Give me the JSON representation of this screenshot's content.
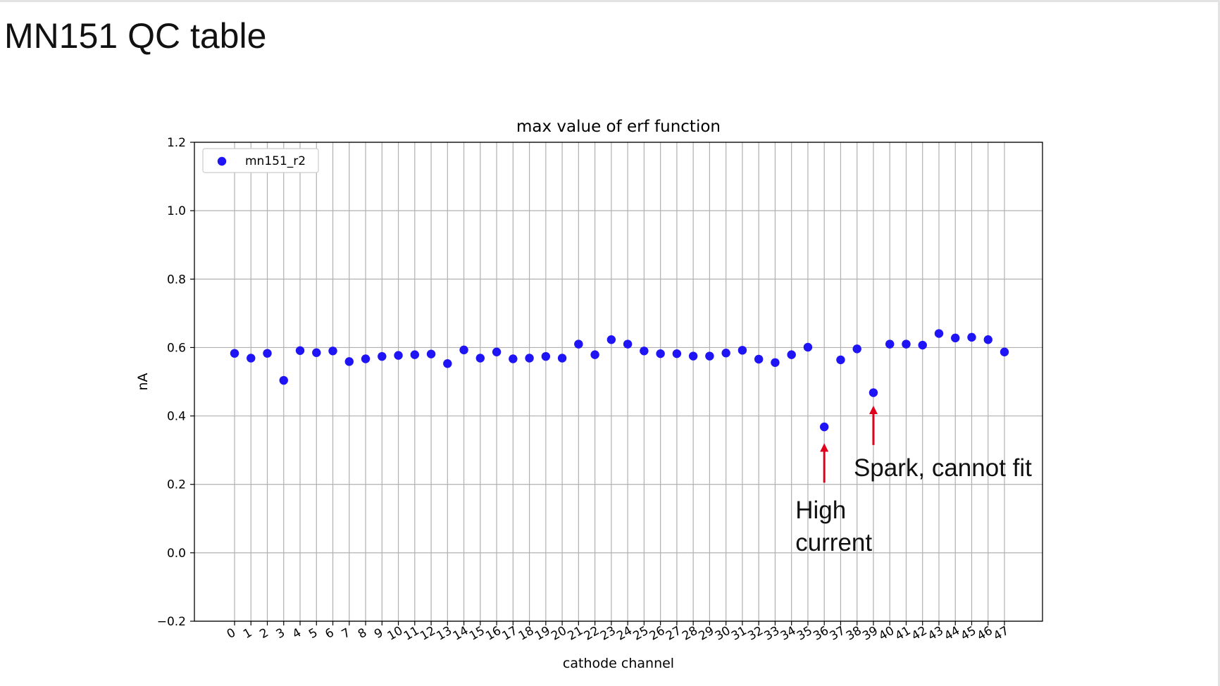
{
  "slide": {
    "title": "MN151 QC table"
  },
  "chart_data": {
    "type": "scatter",
    "title": "max value of erf function",
    "xlabel": "cathode channel",
    "ylabel": "nA",
    "ylim": [
      -0.2,
      1.2
    ],
    "yticks": [
      -0.2,
      0.0,
      0.2,
      0.4,
      0.6,
      0.8,
      1.0,
      1.2
    ],
    "ytick_labels": [
      "−0.2",
      "0.0",
      "0.2",
      "0.4",
      "0.6",
      "0.8",
      "1.0",
      "1.2"
    ],
    "grid": true,
    "legend_placement": "top-left",
    "xtick_rotation": "angled",
    "series": [
      {
        "name": "mn151_r2",
        "color": "#1f14f5",
        "x": [
          0,
          1,
          2,
          3,
          4,
          5,
          6,
          7,
          8,
          9,
          10,
          11,
          12,
          13,
          14,
          15,
          16,
          17,
          18,
          19,
          20,
          21,
          22,
          23,
          24,
          25,
          26,
          27,
          28,
          29,
          30,
          31,
          32,
          33,
          34,
          35,
          36,
          37,
          38,
          39,
          40,
          41,
          42,
          43,
          44,
          45,
          46,
          47
        ],
        "values": [
          0.583,
          0.569,
          0.583,
          0.504,
          0.591,
          0.585,
          0.59,
          0.559,
          0.567,
          0.574,
          0.577,
          0.579,
          0.581,
          0.553,
          0.593,
          0.569,
          0.587,
          0.567,
          0.569,
          0.574,
          0.569,
          0.61,
          0.579,
          0.623,
          0.61,
          0.59,
          0.582,
          0.582,
          0.575,
          0.575,
          0.584,
          0.592,
          0.566,
          0.556,
          0.579,
          0.601,
          0.368,
          0.564,
          0.596,
          0.468,
          0.61,
          0.61,
          0.607,
          0.641,
          0.628,
          0.63,
          0.623,
          0.587
        ]
      }
    ],
    "annotations": [
      {
        "text": "High\ncurrent",
        "x": 36,
        "arrow_tail_y": 0.205,
        "arrow_head_y": 0.32,
        "color": "#e0001b"
      },
      {
        "text": "Spark, cannot fit",
        "x": 39,
        "arrow_tail_y": 0.315,
        "arrow_head_y": 0.43,
        "color": "#e0001b"
      }
    ]
  }
}
